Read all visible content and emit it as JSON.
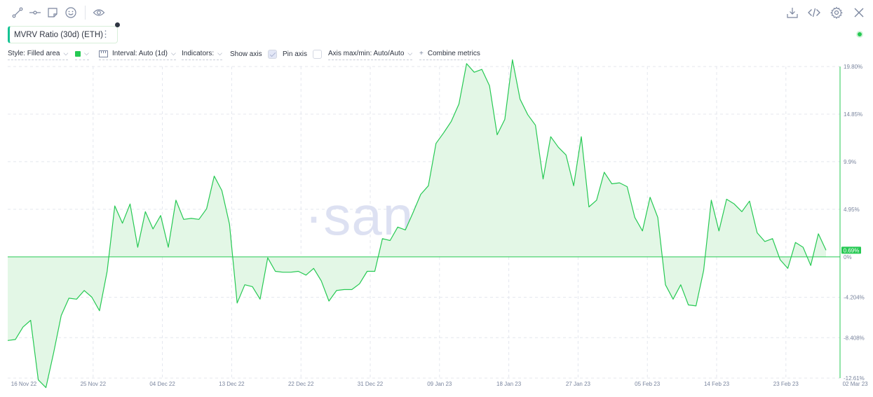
{
  "toolbar": {
    "left_tools": [
      "line-tool-icon",
      "horizontal-ray-icon",
      "note-icon",
      "emoji-icon",
      "eye-icon"
    ],
    "right_tools": [
      "download-icon",
      "code-icon",
      "settings-icon",
      "close-icon"
    ]
  },
  "metric": {
    "label": "MVRV Ratio (30d) (ETH)",
    "menu": "⋮",
    "color": "#26c953"
  },
  "settings": {
    "style": "Style: Filled area",
    "interval": "Interval: Auto (1d)",
    "indicators": "Indicators:",
    "show_axis": "Show axis",
    "show_axis_checked": true,
    "pin_axis": "Pin axis",
    "pin_axis_checked": false,
    "axis_minmax": "Axis max/min: Auto/Auto",
    "combine_plus": "+",
    "combine": "Combine metrics"
  },
  "watermark": "·santiment·",
  "chart_data": {
    "type": "area",
    "series": [
      {
        "name": "MVRV Ratio (30d) (ETH)",
        "color": "#26c953",
        "fill": "#e3f7e6",
        "values": [
          -8.7,
          -8.6,
          -7.3,
          -6.6,
          -12.8,
          -13.6,
          -10.0,
          -6.1,
          -4.3,
          -4.4,
          -3.5,
          -4.2,
          -5.6,
          -1.5,
          5.3,
          3.5,
          5.5,
          1.0,
          4.7,
          2.9,
          4.3,
          1.0,
          5.9,
          3.9,
          4.0,
          3.9,
          5.0,
          8.4,
          6.9,
          3.4,
          -4.8,
          -2.9,
          -3.1,
          -4.4,
          -0.1,
          -1.5,
          -1.6,
          -1.6,
          -1.5,
          -1.9,
          -1.2,
          -2.5,
          -4.6,
          -3.5,
          -3.4,
          -3.4,
          -2.8,
          -1.5,
          -1.5,
          1.9,
          1.7,
          3.1,
          2.8,
          4.6,
          6.5,
          7.4,
          11.8,
          12.9,
          14.1,
          15.9,
          20.1,
          19.2,
          19.5,
          17.8,
          12.7,
          14.3,
          20.5,
          16.4,
          14.8,
          13.7,
          8.1,
          12.5,
          11.4,
          10.6,
          7.4,
          12.5,
          5.2,
          5.9,
          8.8,
          7.6,
          7.7,
          7.3,
          4.1,
          2.7,
          6.2,
          4.1,
          -2.9,
          -4.4,
          -2.9,
          -5.0,
          -5.1,
          -1.4,
          5.9,
          2.7,
          6.0,
          5.5,
          4.7,
          5.8,
          2.5,
          1.6,
          1.9,
          -0.3,
          -1.2,
          1.5,
          1.0,
          -0.9,
          2.4,
          0.69
        ],
        "last_label": "0.69%"
      }
    ],
    "x_tick_labels": [
      "16 Nov 22",
      "25 Nov 22",
      "04 Dec 22",
      "13 Dec 22",
      "22 Dec 22",
      "31 Dec 22",
      "09 Jan 23",
      "18 Jan 23",
      "27 Jan 23",
      "05 Feb 23",
      "14 Feb 23",
      "23 Feb 23",
      "02 Mar 23"
    ],
    "y_tick_labels": [
      "19.80%",
      "14.85%",
      "9.9%",
      "4.95%",
      "0%",
      "-4.204%",
      "-8.408%",
      "-12.61%"
    ],
    "y_tick_values": [
      19.8,
      14.85,
      9.9,
      4.95,
      0,
      -4.204,
      -8.408,
      -12.61
    ],
    "ylim": [
      -12.61,
      19.8
    ],
    "grid": true,
    "xlabel": "",
    "ylabel": ""
  }
}
